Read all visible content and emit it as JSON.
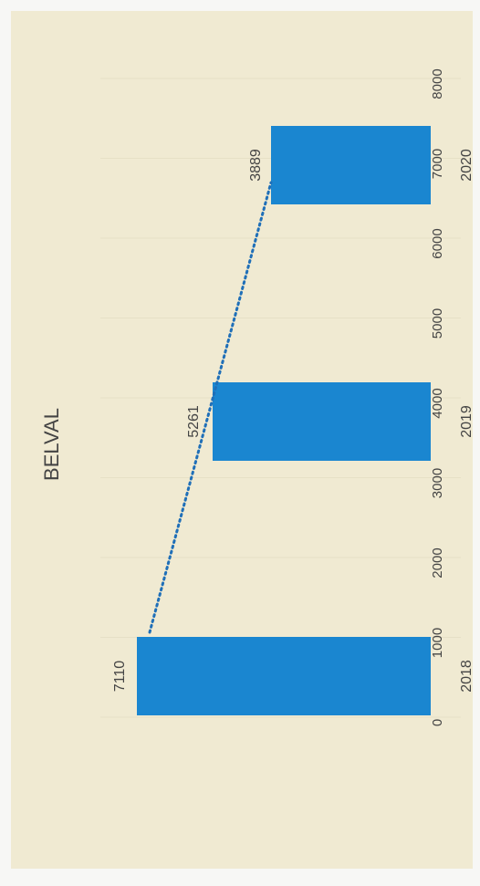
{
  "chart_data": {
    "type": "bar",
    "title": "BELVAL",
    "categories": [
      "2018",
      "2019",
      "2020"
    ],
    "values": [
      7110,
      5261,
      3889
    ],
    "data_labels": [
      "7110",
      "5261",
      "3889"
    ],
    "ylim": [
      0,
      8000
    ],
    "y_ticks": [
      "0",
      "1000",
      "2000",
      "3000",
      "4000",
      "5000",
      "6000",
      "7000",
      "8000"
    ],
    "trendline": "linear, dotted",
    "grid": true,
    "orientation": "rotated 90° counter-clockwise",
    "colors": {
      "bar": "#1a86d0",
      "trendline": "#1f6fb8",
      "plot_background": "#f0ead2",
      "grid": "#e6e0c6"
    }
  }
}
